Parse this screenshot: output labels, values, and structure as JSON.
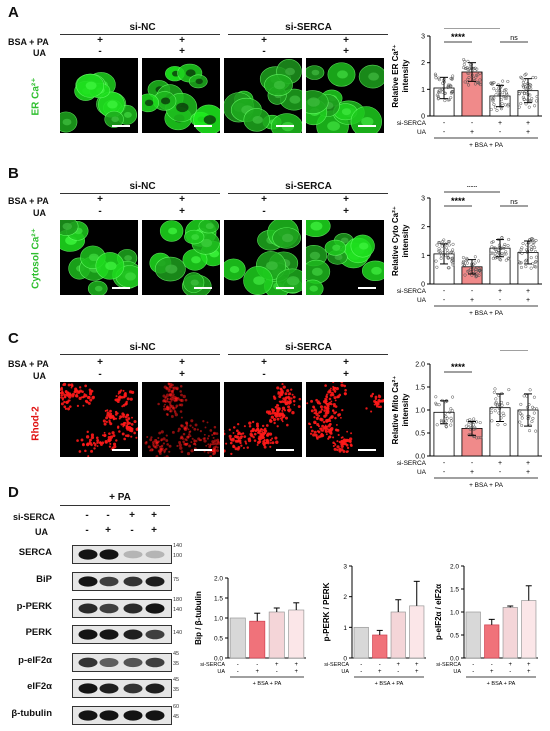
{
  "panels": {
    "A": {
      "letter": "A",
      "stain": "ER Ca²⁺",
      "stain_color": "#2fbf2f",
      "group1": "si-NC",
      "group2": "si-SERCA",
      "row1_label": "BSA + PA",
      "row2_label": "UA",
      "row1": [
        "+",
        "+",
        "+",
        "+"
      ],
      "row2": [
        "-",
        "+",
        "-",
        "+"
      ]
    },
    "B": {
      "letter": "B",
      "stain": "Cytosol Ca²⁺",
      "stain_color": "#2fbf2f",
      "group1": "si-NC",
      "group2": "si-SERCA",
      "row1_label": "BSA + PA",
      "row2_label": "UA",
      "row1": [
        "+",
        "+",
        "+",
        "+"
      ],
      "row2": [
        "-",
        "+",
        "-",
        "+"
      ]
    },
    "C": {
      "letter": "C",
      "stain": "Rhod-2",
      "stain_color": "#e01010",
      "group1": "si-NC",
      "group2": "si-SERCA",
      "row1_label": "BSA + PA",
      "row2_label": "UA",
      "row1": [
        "+",
        "+",
        "+",
        "+"
      ],
      "row2": [
        "-",
        "+",
        "-",
        "+"
      ]
    },
    "D": {
      "letter": "D",
      "treat": "+ PA",
      "row1_label": "si-SERCA",
      "row2_label": "UA",
      "row1": [
        "-",
        "-",
        "+",
        "+"
      ],
      "row2": [
        "-",
        "+",
        "-",
        "+"
      ]
    }
  },
  "chart_data": [
    {
      "type": "bar",
      "id": "A",
      "ylabel_line1": "Relative ER Ca²⁺",
      "ylabel_line2": "intensity",
      "ylim": [
        0,
        3
      ],
      "yticks": [
        "0",
        "1",
        "2",
        "3"
      ],
      "values": [
        1.05,
        1.65,
        0.75,
        0.95
      ],
      "errors": [
        0.4,
        0.35,
        0.4,
        0.45
      ],
      "sig": [
        {
          "from": 0,
          "to": 1,
          "text": "****"
        },
        {
          "from": 0,
          "to": 2,
          "text": "*"
        },
        {
          "from": 2,
          "to": 3,
          "text": "ns"
        }
      ],
      "row1_label": "si-SERCA",
      "row1": [
        "-",
        "-",
        "+",
        "+"
      ],
      "row2_label": "UA",
      "row2": [
        "-",
        "+",
        "-",
        "+"
      ],
      "footer": "+ BSA + PA"
    },
    {
      "type": "bar",
      "id": "B",
      "ylabel_line1": "Relative Cyto Ca²⁺",
      "ylabel_line2": "intensity",
      "ylim": [
        0,
        3
      ],
      "yticks": [
        "0",
        "1",
        "2",
        "3"
      ],
      "values": [
        1.05,
        0.6,
        1.25,
        1.1
      ],
      "errors": [
        0.35,
        0.25,
        0.3,
        0.4
      ],
      "sig": [
        {
          "from": 0,
          "to": 1,
          "text": "****"
        },
        {
          "from": 0,
          "to": 2,
          "text": "***"
        },
        {
          "from": 2,
          "to": 3,
          "text": "ns"
        }
      ],
      "row1_label": "si-SERCA",
      "row1": [
        "-",
        "-",
        "+",
        "+"
      ],
      "row2_label": "UA",
      "row2": [
        "-",
        "+",
        "-",
        "+"
      ],
      "footer": "+ BSA + PA"
    },
    {
      "type": "bar",
      "id": "C",
      "ylabel_line1": "Relative Mito Ca²⁺",
      "ylabel_line2": "intensity",
      "ylim": [
        0,
        2
      ],
      "yticks": [
        "0.0",
        "0.5",
        "1.0",
        "1.5",
        "2.0"
      ],
      "values": [
        0.95,
        0.6,
        1.05,
        1.0
      ],
      "errors": [
        0.25,
        0.15,
        0.3,
        0.35
      ],
      "sig": [
        {
          "from": 0,
          "to": 1,
          "text": "****"
        },
        {
          "from": 2,
          "to": 3,
          "text": "ns"
        }
      ],
      "row1_label": "si-SERCA",
      "row1": [
        "-",
        "-",
        "+",
        "+"
      ],
      "row2_label": "UA",
      "row2": [
        "-",
        "+",
        "-",
        "+"
      ],
      "footer": "+ BSA + PA"
    },
    {
      "type": "bar",
      "id": "D1",
      "ylabel": "Bip / β-tubulin",
      "ylim": [
        0,
        2
      ],
      "yticks": [
        "0.0",
        "0.5",
        "1.0",
        "1.5",
        "2.0"
      ],
      "values": [
        1.0,
        0.92,
        1.15,
        1.2
      ],
      "errors": [
        0,
        0.2,
        0.1,
        0.18
      ],
      "row1_label": "si-SERCA",
      "row1": [
        "-",
        "-",
        "+",
        "+"
      ],
      "row2_label": "UA",
      "row2": [
        "-",
        "+",
        "-",
        "+"
      ],
      "footer": "+ BSA + PA"
    },
    {
      "type": "bar",
      "id": "D2",
      "ylabel": "p-PERK / PERK",
      "ylim": [
        0,
        3
      ],
      "yticks": [
        "0",
        "1",
        "2",
        "3"
      ],
      "values": [
        1.0,
        0.75,
        1.5,
        1.7
      ],
      "errors": [
        0,
        0.15,
        0.4,
        0.8
      ],
      "row1_label": "si-SERCA",
      "row1": [
        "-",
        "-",
        "+",
        "+"
      ],
      "row2_label": "UA",
      "row2": [
        "-",
        "+",
        "-",
        "+"
      ],
      "footer": "+ BSA + PA"
    },
    {
      "type": "bar",
      "id": "D3",
      "ylabel": "p-eIF2α / eIF2α",
      "ylim": [
        0,
        2
      ],
      "yticks": [
        "0.0",
        "0.5",
        "1.0",
        "1.5",
        "2.0"
      ],
      "values": [
        1.0,
        0.72,
        1.1,
        1.25
      ],
      "errors": [
        0,
        0.12,
        0.03,
        0.32
      ],
      "row1_label": "si-SERCA",
      "row1": [
        "-",
        "-",
        "+",
        "+"
      ],
      "row2_label": "UA",
      "row2": [
        "-",
        "+",
        "-",
        "+"
      ],
      "footer": "+ BSA + PA"
    }
  ],
  "blots": [
    {
      "name": "SERCA",
      "mw": [
        "140",
        "100"
      ],
      "intensity": [
        1,
        1,
        0.25,
        0.25
      ]
    },
    {
      "name": "BiP",
      "mw": [
        "75"
      ],
      "intensity": [
        1,
        0.8,
        0.85,
        0.95
      ]
    },
    {
      "name": "p-PERK",
      "mw": [
        "180",
        "140"
      ],
      "intensity": [
        0.9,
        0.8,
        0.9,
        1
      ]
    },
    {
      "name": "PERK",
      "mw": [
        "140"
      ],
      "intensity": [
        1,
        1,
        0.95,
        0.8
      ]
    },
    {
      "name": "p-eIF2α",
      "mw": [
        "45",
        "35"
      ],
      "intensity": [
        0.85,
        0.65,
        0.7,
        0.8
      ]
    },
    {
      "name": "eIF2α",
      "mw": [
        "45",
        "35"
      ],
      "intensity": [
        1,
        0.95,
        0.85,
        0.95
      ]
    },
    {
      "name": "β-tubulin",
      "mw": [
        "60",
        "45"
      ],
      "intensity": [
        1,
        1,
        1,
        1
      ]
    }
  ],
  "colors": {
    "bar_fills": [
      "#d8d8d8",
      "#f0727a",
      "#f4d5d8",
      "#fbe6e8"
    ],
    "bar_fills_A": [
      "#ffffff",
      "#f08a8a",
      "#ffffff",
      "#ffffff"
    ]
  }
}
